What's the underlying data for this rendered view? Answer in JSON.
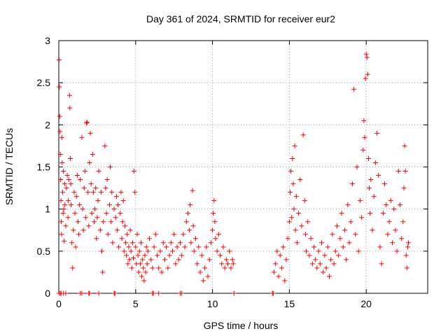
{
  "chart_data": {
    "type": "scatter",
    "title": "Day 361 of 2024, SRMTID for receiver eur2",
    "xlabel": "GPS time / hours",
    "ylabel": "SRMTID / TECUs",
    "xlim": [
      0,
      24
    ],
    "ylim": [
      0,
      3
    ],
    "xticks": [
      0,
      5,
      10,
      15,
      20
    ],
    "yticks": [
      0,
      0.5,
      1,
      1.5,
      2,
      2.5,
      3
    ],
    "xtick_labels": [
      "0",
      "5",
      "10",
      "15",
      "20"
    ],
    "ytick_labels": [
      "0",
      "0.5",
      "1",
      "1.5",
      "2",
      "2.5",
      "3"
    ],
    "grid": true,
    "marker": "plus",
    "color": "#ff0000",
    "series": [
      {
        "name": "SRMTID eur2",
        "points": [
          [
            0.02,
            2.77
          ],
          [
            0.04,
            2.45
          ],
          [
            0.06,
            2.1
          ],
          [
            0.08,
            1.92
          ],
          [
            0.1,
            1.65
          ],
          [
            0.12,
            1.35
          ],
          [
            0.14,
            1.1
          ],
          [
            0.16,
            0.85
          ],
          [
            0.18,
            0.7
          ],
          [
            0.2,
            1.85
          ],
          [
            0.22,
            1.55
          ],
          [
            0.25,
            1.2
          ],
          [
            0.28,
            0.95
          ],
          [
            0.3,
            1.45
          ],
          [
            0.32,
            1.0
          ],
          [
            0.35,
            0.62
          ],
          [
            0.38,
            1.3
          ],
          [
            0.4,
            1.05
          ],
          [
            0.45,
            0.8
          ],
          [
            0.5,
            1.25
          ],
          [
            0.55,
            1.4
          ],
          [
            0.6,
            0.9
          ],
          [
            0.62,
            1.1
          ],
          [
            0.65,
            1.35
          ],
          [
            0.7,
            2.35
          ],
          [
            0.72,
            2.2
          ],
          [
            0.75,
            1.6
          ],
          [
            0.78,
            1.3
          ],
          [
            0.8,
            1.05
          ],
          [
            0.85,
            0.6
          ],
          [
            0.9,
            0.3
          ],
          [
            0.95,
            0.75
          ],
          [
            1.0,
            1.2
          ],
          [
            1.05,
            0.95
          ],
          [
            1.1,
            0.55
          ],
          [
            1.15,
            1.15
          ],
          [
            1.2,
            1.4
          ],
          [
            1.25,
            0.85
          ],
          [
            1.3,
            0.7
          ],
          [
            1.35,
            1.05
          ],
          [
            1.4,
            1.35
          ],
          [
            1.5,
            1.85
          ],
          [
            1.55,
            1.0
          ],
          [
            1.6,
            0.75
          ],
          [
            1.65,
            1.25
          ],
          [
            1.7,
            1.45
          ],
          [
            1.75,
            0.9
          ],
          [
            1.8,
            2.02
          ],
          [
            1.85,
            2.03
          ],
          [
            1.9,
            1.2
          ],
          [
            1.95,
            0.8
          ],
          [
            2.0,
            1.55
          ],
          [
            2.05,
            1.9
          ],
          [
            2.1,
            1.3
          ],
          [
            2.15,
            0.95
          ],
          [
            2.2,
            1.65
          ],
          [
            2.25,
            1.2
          ],
          [
            2.3,
            0.85
          ],
          [
            2.35,
            1.0
          ],
          [
            2.4,
            1.25
          ],
          [
            2.45,
            0.65
          ],
          [
            2.5,
            0.9
          ],
          [
            2.55,
            1.1
          ],
          [
            2.6,
            1.45
          ],
          [
            2.7,
            0.75
          ],
          [
            2.75,
            1.2
          ],
          [
            2.8,
            0.5
          ],
          [
            2.85,
            0.25
          ],
          [
            2.9,
            0.85
          ],
          [
            3.0,
            1.75
          ],
          [
            3.05,
            1.25
          ],
          [
            3.1,
            0.95
          ],
          [
            3.15,
            1.35
          ],
          [
            3.2,
            0.7
          ],
          [
            3.3,
            1.05
          ],
          [
            3.35,
            1.5
          ],
          [
            3.4,
            0.85
          ],
          [
            3.45,
            1.2
          ],
          [
            3.5,
            0.6
          ],
          [
            3.6,
            1.0
          ],
          [
            3.7,
            0.9
          ],
          [
            3.75,
            1.15
          ],
          [
            3.8,
            0.75
          ],
          [
            3.85,
            1.05
          ],
          [
            3.9,
            0.55
          ],
          [
            4.0,
            0.95
          ],
          [
            4.05,
            1.2
          ],
          [
            4.1,
            0.65
          ],
          [
            4.15,
            0.85
          ],
          [
            4.2,
            1.1
          ],
          [
            4.25,
            0.5
          ],
          [
            4.3,
            0.8
          ],
          [
            4.35,
            0.6
          ],
          [
            4.4,
            0.45
          ],
          [
            4.45,
            0.7
          ],
          [
            4.5,
            0.35
          ],
          [
            4.55,
            0.55
          ],
          [
            4.6,
            0.4
          ],
          [
            4.65,
            0.75
          ],
          [
            4.7,
            0.5
          ],
          [
            4.75,
            0.3
          ],
          [
            4.8,
            0.6
          ],
          [
            4.85,
            0.42
          ],
          [
            4.9,
            1.45
          ],
          [
            4.95,
            1.2
          ],
          [
            5.0,
            0.55
          ],
          [
            5.05,
            0.35
          ],
          [
            5.1,
            0.7
          ],
          [
            5.15,
            0.45
          ],
          [
            5.2,
            0.25
          ],
          [
            5.25,
            0.5
          ],
          [
            5.3,
            0.35
          ],
          [
            5.35,
            0.6
          ],
          [
            5.4,
            0.2
          ],
          [
            5.45,
            0.4
          ],
          [
            5.5,
            0.3
          ],
          [
            5.55,
            0.15
          ],
          [
            5.6,
            0.45
          ],
          [
            5.65,
            0.25
          ],
          [
            5.7,
            0.55
          ],
          [
            5.75,
            0.35
          ],
          [
            5.8,
            0.5
          ],
          [
            5.9,
            0.65
          ],
          [
            6.0,
            0.4
          ],
          [
            6.1,
            0.3
          ],
          [
            6.2,
            0.55
          ],
          [
            6.3,
            0.7
          ],
          [
            6.4,
            0.45
          ],
          [
            6.5,
            0.3
          ],
          [
            6.6,
            0.5
          ],
          [
            6.7,
            0.25
          ],
          [
            6.8,
            0.6
          ],
          [
            6.9,
            0.4
          ],
          [
            7.0,
            0.55
          ],
          [
            7.1,
            0.3
          ],
          [
            7.2,
            0.45
          ],
          [
            7.3,
            0.6
          ],
          [
            7.4,
            0.5
          ],
          [
            7.5,
            0.7
          ],
          [
            7.6,
            0.35
          ],
          [
            7.7,
            0.55
          ],
          [
            7.8,
            0.4
          ],
          [
            7.9,
            0.6
          ],
          [
            8.0,
            0.45
          ],
          [
            8.1,
            0.7
          ],
          [
            8.2,
            0.55
          ],
          [
            8.3,
            0.85
          ],
          [
            8.4,
            0.95
          ],
          [
            8.5,
            0.75
          ],
          [
            8.55,
            1.05
          ],
          [
            8.6,
            0.6
          ],
          [
            8.7,
            1.22
          ],
          [
            8.75,
            0.8
          ],
          [
            8.8,
            0.5
          ],
          [
            8.9,
            0.65
          ],
          [
            9.0,
            0.35
          ],
          [
            9.1,
            0.55
          ],
          [
            9.2,
            0.25
          ],
          [
            9.3,
            0.45
          ],
          [
            9.4,
            0.15
          ],
          [
            9.5,
            0.3
          ],
          [
            9.6,
            0.55
          ],
          [
            9.7,
            0.2
          ],
          [
            9.8,
            0.4
          ],
          [
            9.9,
            0.6
          ],
          [
            10.0,
            0.75
          ],
          [
            10.05,
            0.95
          ],
          [
            10.1,
            1.1
          ],
          [
            10.15,
            0.85
          ],
          [
            10.2,
            0.65
          ],
          [
            10.3,
            0.5
          ],
          [
            10.4,
            0.7
          ],
          [
            10.5,
            0.45
          ],
          [
            10.6,
            0.35
          ],
          [
            10.7,
            0.55
          ],
          [
            10.8,
            0.3
          ],
          [
            10.9,
            0.4
          ],
          [
            11.0,
            0.35
          ],
          [
            11.1,
            0.5
          ],
          [
            11.2,
            0.3
          ],
          [
            11.3,
            0.4
          ],
          [
            11.35,
            0.35
          ],
          [
            14.0,
            0.25
          ],
          [
            14.1,
            0.35
          ],
          [
            14.2,
            0.5
          ],
          [
            14.3,
            0.2
          ],
          [
            14.4,
            0.45
          ],
          [
            14.5,
            0.3
          ],
          [
            14.6,
            0.55
          ],
          [
            14.7,
            0.15
          ],
          [
            14.8,
            0.4
          ],
          [
            14.9,
            0.65
          ],
          [
            15.0,
            0.85
          ],
          [
            15.05,
            1.2
          ],
          [
            15.1,
            1.45
          ],
          [
            15.15,
            0.9
          ],
          [
            15.2,
            1.6
          ],
          [
            15.25,
            1.3
          ],
          [
            15.3,
            1.0
          ],
          [
            15.35,
            1.75
          ],
          [
            15.4,
            0.75
          ],
          [
            15.45,
            1.15
          ],
          [
            15.5,
            0.6
          ],
          [
            15.6,
            0.95
          ],
          [
            15.7,
            1.35
          ],
          [
            15.8,
            0.8
          ],
          [
            15.9,
            1.88
          ],
          [
            16.0,
            1.1
          ],
          [
            16.05,
            0.7
          ],
          [
            16.1,
            0.5
          ],
          [
            16.2,
            0.85
          ],
          [
            16.3,
            0.45
          ],
          [
            16.4,
            0.65
          ],
          [
            16.5,
            0.35
          ],
          [
            16.6,
            0.55
          ],
          [
            16.7,
            0.4
          ],
          [
            16.8,
            0.3
          ],
          [
            16.9,
            0.5
          ],
          [
            17.0,
            0.35
          ],
          [
            17.1,
            0.6
          ],
          [
            17.2,
            0.25
          ],
          [
            17.3,
            0.45
          ],
          [
            17.4,
            0.3
          ],
          [
            17.5,
            0.55
          ],
          [
            17.6,
            0.2
          ],
          [
            17.7,
            0.4
          ],
          [
            17.8,
            0.7
          ],
          [
            17.9,
            0.35
          ],
          [
            18.0,
            0.5
          ],
          [
            18.1,
            0.8
          ],
          [
            18.2,
            0.45
          ],
          [
            18.3,
            0.65
          ],
          [
            18.4,
            0.95
          ],
          [
            18.5,
            0.55
          ],
          [
            18.6,
            0.75
          ],
          [
            18.7,
            0.4
          ],
          [
            18.8,
            1.05
          ],
          [
            18.9,
            0.6
          ],
          [
            19.0,
            0.85
          ],
          [
            19.1,
            1.3
          ],
          [
            19.2,
            2.42
          ],
          [
            19.3,
            0.7
          ],
          [
            19.4,
            1.5
          ],
          [
            19.5,
            0.5
          ],
          [
            19.6,
            1.1
          ],
          [
            19.7,
            0.9
          ],
          [
            19.8,
            1.7
          ],
          [
            19.85,
            2.05
          ],
          [
            19.9,
            1.85
          ],
          [
            19.95,
            2.55
          ],
          [
            20.0,
            2.84
          ],
          [
            20.05,
            2.8
          ],
          [
            20.1,
            2.6
          ],
          [
            20.15,
            1.6
          ],
          [
            20.2,
            1.25
          ],
          [
            20.25,
            0.95
          ],
          [
            20.3,
            1.35
          ],
          [
            20.4,
            0.75
          ],
          [
            20.5,
            1.15
          ],
          [
            20.6,
            1.55
          ],
          [
            20.7,
            1.9
          ],
          [
            20.8,
            1.4
          ],
          [
            20.9,
            0.55
          ],
          [
            21.0,
            0.35
          ],
          [
            21.1,
            0.95
          ],
          [
            21.2,
            1.3
          ],
          [
            21.3,
            1.05
          ],
          [
            21.4,
            0.7
          ],
          [
            21.5,
            0.85
          ],
          [
            21.6,
            1.1
          ],
          [
            21.7,
            0.6
          ],
          [
            21.8,
            1.0
          ],
          [
            21.9,
            0.75
          ],
          [
            22.0,
            0.5
          ],
          [
            22.1,
            1.45
          ],
          [
            22.2,
            1.05
          ],
          [
            22.3,
            0.65
          ],
          [
            22.4,
            0.85
          ],
          [
            22.45,
            1.25
          ],
          [
            22.5,
            1.75
          ],
          [
            22.55,
            1.45
          ],
          [
            22.6,
            0.45
          ],
          [
            22.65,
            0.3
          ],
          [
            22.7,
            0.55
          ],
          [
            22.75,
            0.6
          ]
        ]
      }
    ],
    "zero_points_x": [
      0.02,
      0.1,
      0.15,
      0.3,
      0.45,
      1.4,
      1.5,
      1.95,
      2.0,
      2.6,
      3.6,
      3.65,
      6.1,
      6.15,
      6.5,
      7.9,
      8.0,
      11.4,
      13.9,
      13.95
    ]
  }
}
